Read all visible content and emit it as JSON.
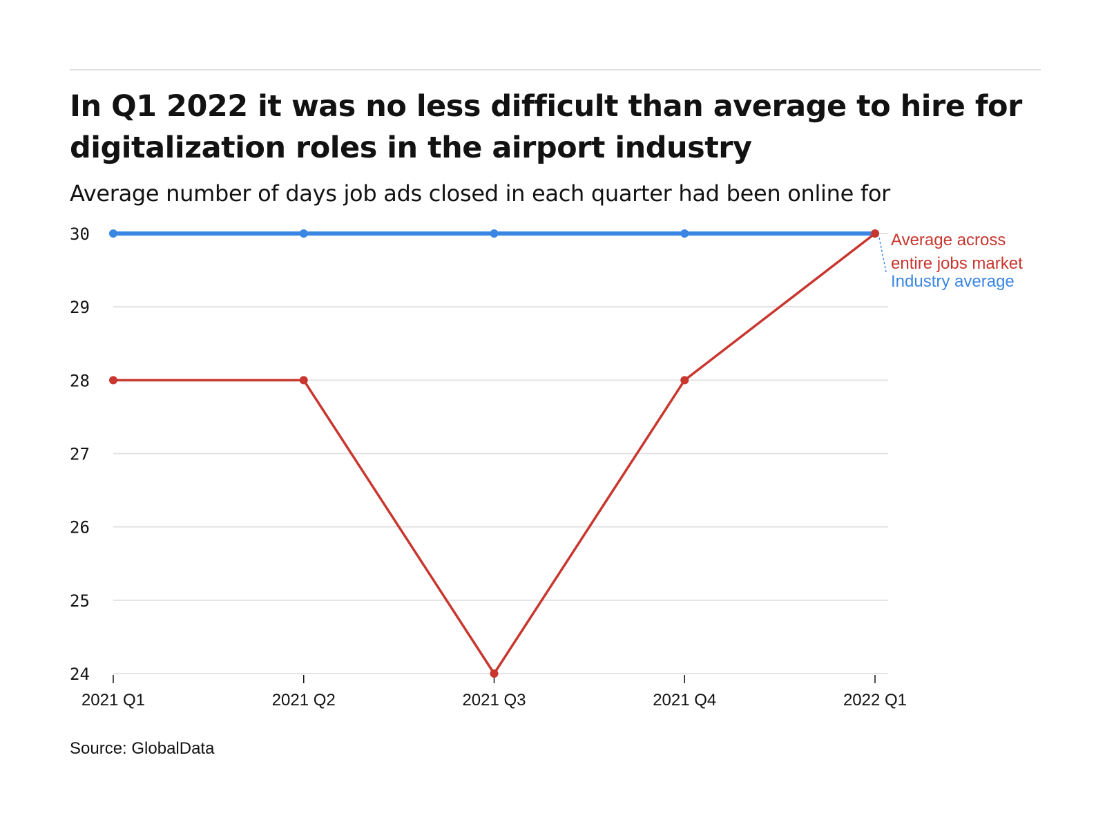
{
  "title": "In Q1 2022 it was no less difficult than average to hire for digitalization roles in the airport industry",
  "subtitle": "Average number of days job ads closed in each quarter had been online for",
  "source": "Source: GlobalData",
  "chart_data": {
    "type": "line",
    "categories": [
      "2021 Q1",
      "2021 Q2",
      "2021 Q3",
      "2021 Q4",
      "2022 Q1"
    ],
    "ylim": [
      24,
      30
    ],
    "yticks": [
      "24",
      "25",
      "26",
      "27",
      "28",
      "29",
      "30"
    ],
    "grid": true,
    "series": [
      {
        "key": "industry",
        "name": "Industry average",
        "color": "#3a87e3",
        "values": [
          30,
          30,
          30,
          30,
          30
        ]
      },
      {
        "key": "market",
        "name": "Average across entire jobs market",
        "color": "#c8362e",
        "values": [
          28,
          28,
          24,
          28,
          30
        ]
      }
    ],
    "annotations": [
      {
        "series": "market",
        "lines": [
          "Average across",
          "entire jobs market"
        ]
      },
      {
        "series": "industry",
        "lines": [
          "Industry average"
        ]
      }
    ]
  }
}
